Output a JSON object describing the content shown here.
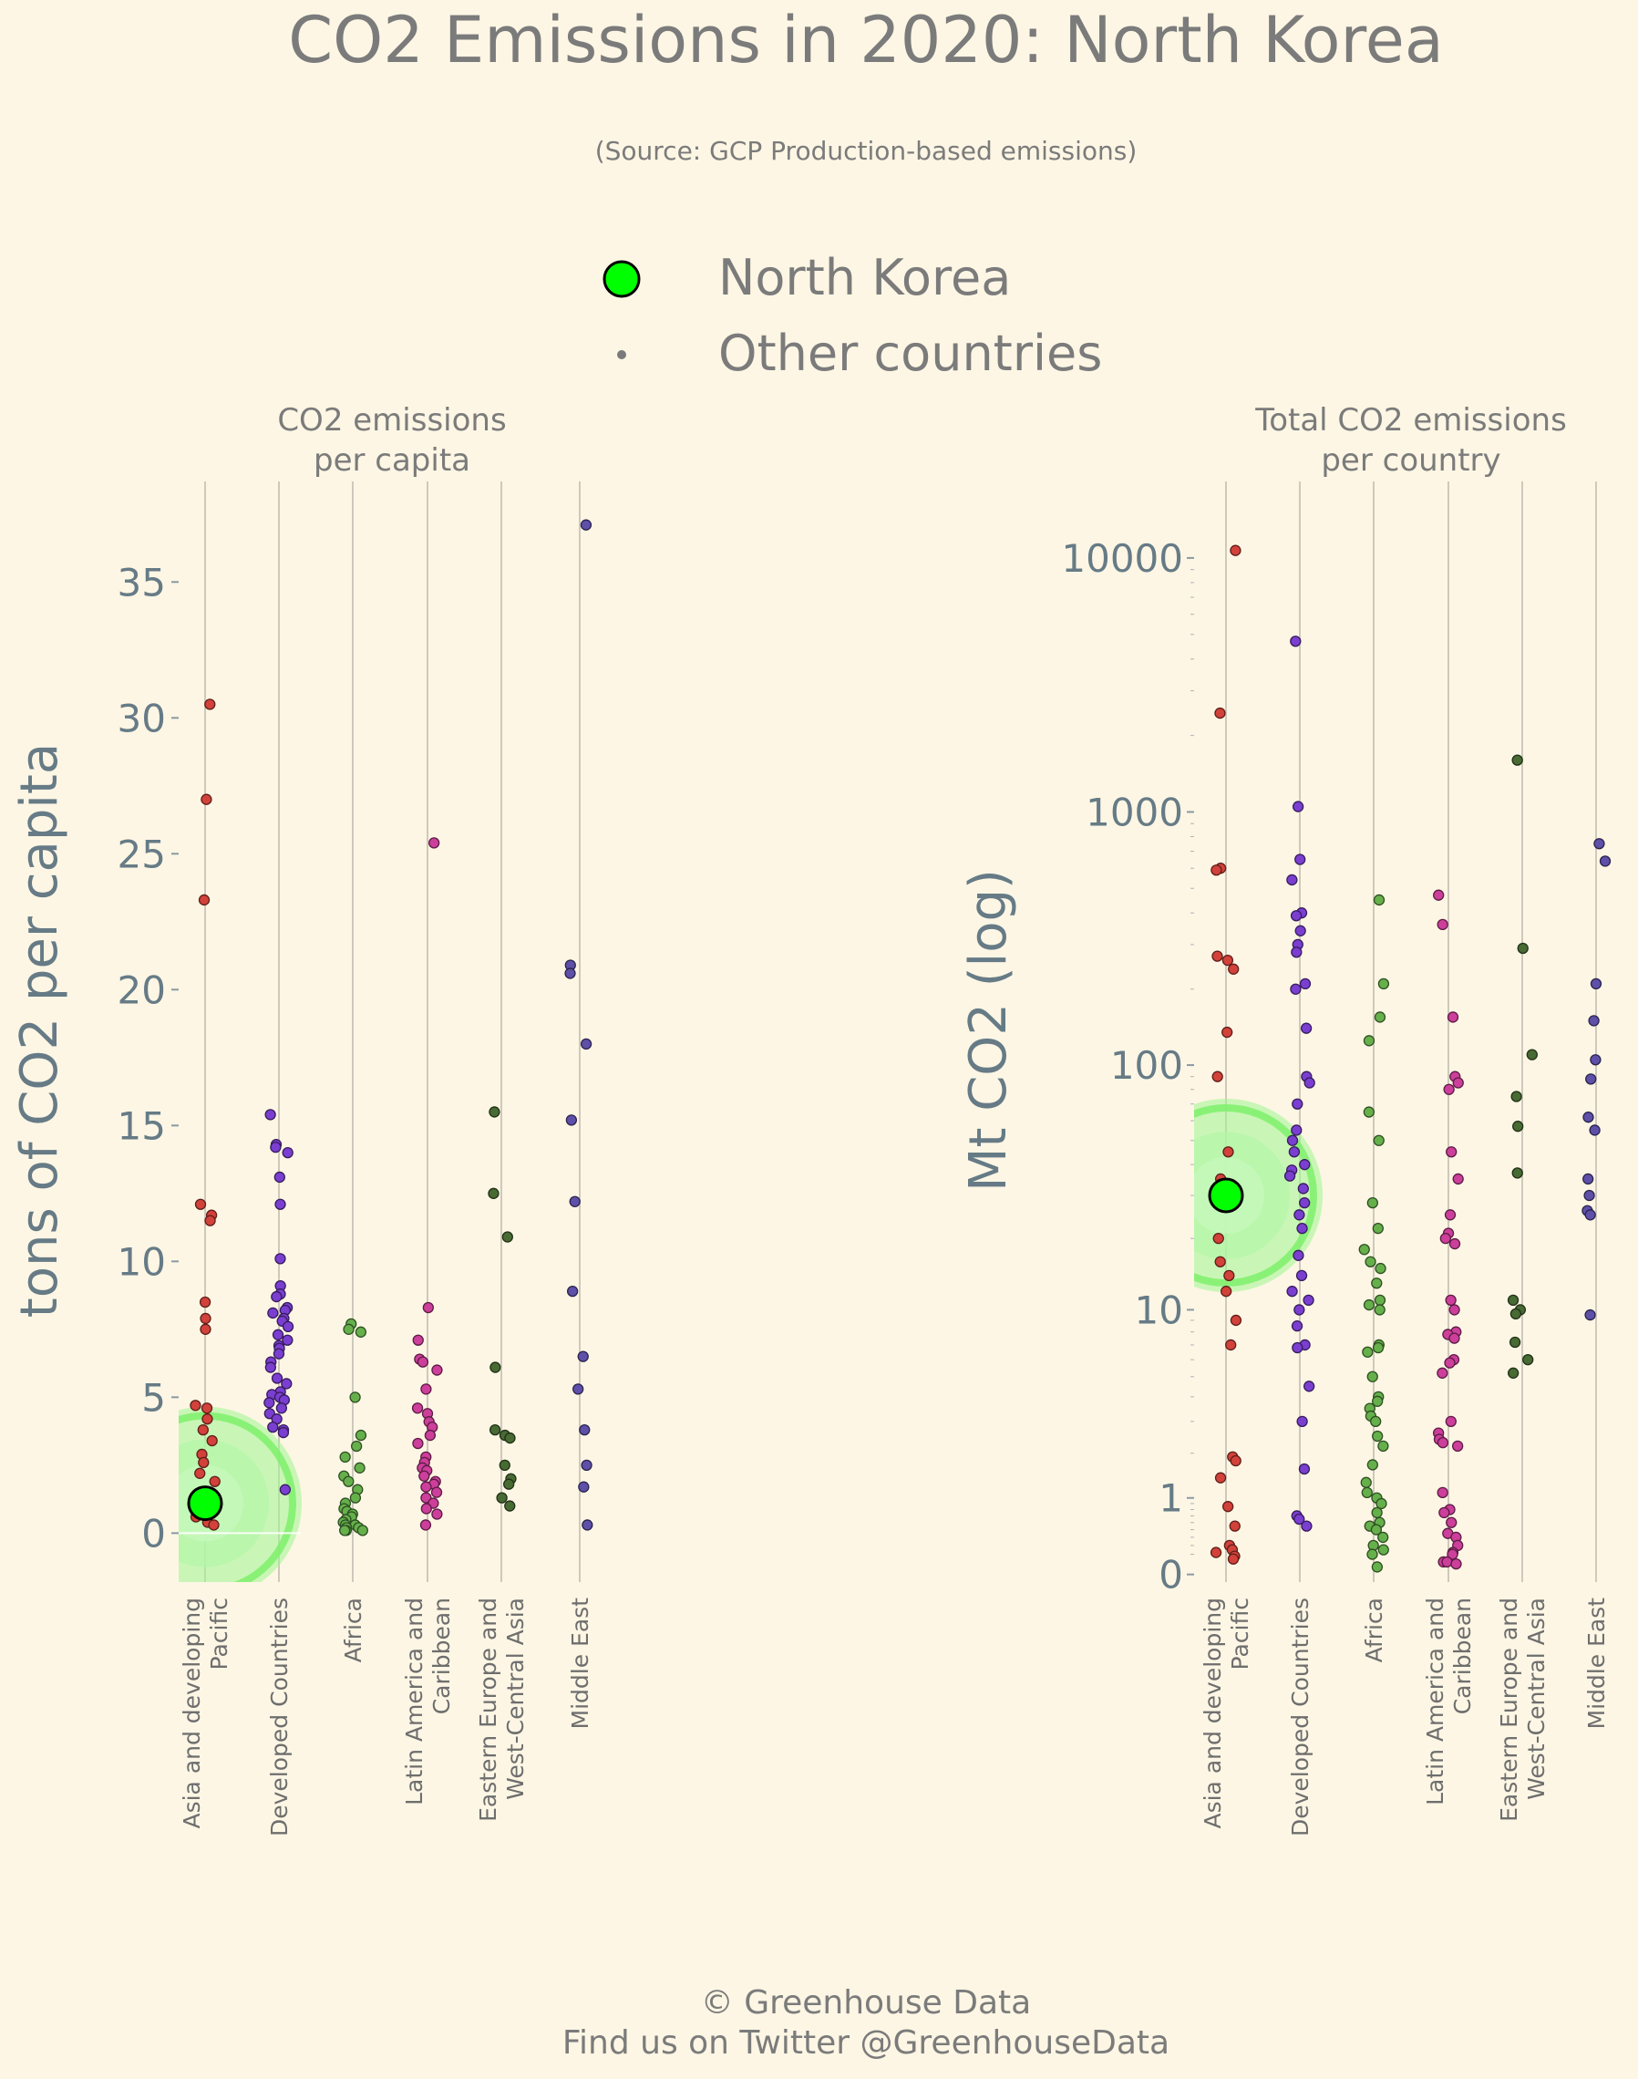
{
  "header": {
    "title": "CO2 Emissions in 2020: North Korea",
    "subtitle": "(Source: GCP Production-based emissions)"
  },
  "legend": {
    "highlight_label": "North Korea",
    "other_label": "Other countries",
    "highlight_color": "#00ff00"
  },
  "footer": {
    "line1": "© Greenhouse Data",
    "line2": "Find us on Twitter @GreenhouseData"
  },
  "region_colors": {
    "Asia and developing Pacific": "#d2423a",
    "Developed Countries": "#7a3fd0",
    "Africa": "#66b04c",
    "Latin America and Caribbean": "#cc3f9a",
    "Eastern Europe and West-Central Asia": "#486a33",
    "Middle East": "#5e4fa8"
  },
  "chart_data": [
    {
      "type": "scatter",
      "title_lines": [
        "CO2 emissions",
        "per capita"
      ],
      "ylabel": "tons of CO2 per capita",
      "scale": "linear",
      "ylim": [
        -1.8,
        38.7
      ],
      "yticks": [
        0,
        5,
        10,
        15,
        20,
        25,
        30,
        35
      ],
      "ytick_labels": [
        "0",
        "5",
        "10",
        "15",
        "20",
        "25",
        "30",
        "35"
      ],
      "categories": [
        [
          "Asia and developing",
          "Pacific"
        ],
        [
          "Developed Countries"
        ],
        [
          "Africa"
        ],
        [
          "Latin America and",
          "Caribbean"
        ],
        [
          "Eastern Europe and",
          "West-Central Asia"
        ],
        [
          "Middle East"
        ]
      ],
      "series": [
        {
          "region": "Asia and developing Pacific",
          "values": [
            30.5,
            27,
            23.3,
            12.1,
            11.7,
            11.5,
            8.5,
            7.9,
            7.5,
            4.7,
            4.6,
            4.2,
            3.8,
            3.4,
            2.9,
            2.6,
            2.2,
            1.9,
            1.5,
            1.2,
            0.9,
            0.6,
            0.4,
            0.3
          ]
        },
        {
          "region": "Developed Countries",
          "values": [
            15.4,
            14.3,
            14.2,
            14,
            13.1,
            12.1,
            10.1,
            9.1,
            8.8,
            8.7,
            8.3,
            8.2,
            8.1,
            7.9,
            7.8,
            7.6,
            7.3,
            7.1,
            6.9,
            6.8,
            6.6,
            6.3,
            6.1,
            5.7,
            5.5,
            5.2,
            5.1,
            5,
            4.9,
            4.8,
            4.6,
            4.4,
            4.2,
            3.9,
            3.8,
            3.7,
            1.6
          ]
        },
        {
          "region": "Africa",
          "values": [
            7.7,
            7.5,
            7.4,
            5,
            3.6,
            3.2,
            2.8,
            2.4,
            2.1,
            1.9,
            1.6,
            1.3,
            1.1,
            0.9,
            0.8,
            0.7,
            0.6,
            0.5,
            0.4,
            0.3,
            0.3,
            0.2,
            0.2,
            0.1,
            0.1,
            0.1
          ]
        },
        {
          "region": "Latin America and Caribbean",
          "values": [
            25.4,
            8.3,
            7.1,
            6.4,
            6.3,
            6,
            5.3,
            4.6,
            4.4,
            4.1,
            3.9,
            3.6,
            3.3,
            2.8,
            2.6,
            2.4,
            2.3,
            2.1,
            1.9,
            1.8,
            1.7,
            1.5,
            1.3,
            1.1,
            0.9,
            0.7,
            0.3
          ]
        },
        {
          "region": "Eastern Europe and West-Central Asia",
          "values": [
            15.5,
            12.5,
            10.9,
            6.1,
            3.8,
            3.6,
            3.5,
            2.5,
            2,
            1.8,
            1.3,
            1
          ]
        },
        {
          "region": "Middle East",
          "values": [
            37.1,
            20.9,
            20.6,
            18,
            15.2,
            12.2,
            8.9,
            6.5,
            5.3,
            3.8,
            2.5,
            1.7,
            0.3
          ]
        }
      ],
      "highlight": {
        "name": "North Korea",
        "category_index": 0,
        "value": 1.1
      }
    },
    {
      "type": "scatter",
      "title_lines": [
        "Total CO2 emissions",
        "per country"
      ],
      "ylabel": "Mt CO2 (log)",
      "scale": "log1p",
      "ylim": [
        -0.2,
        20000
      ],
      "yticks": [
        0,
        1,
        10,
        100,
        1000,
        10000
      ],
      "ytick_labels": [
        "0",
        "1",
        "10",
        "100",
        "1000",
        "10000"
      ],
      "categories": [
        [
          "Asia and developing",
          "Pacific"
        ],
        [
          "Developed Countries"
        ],
        [
          "Africa"
        ],
        [
          "Latin America and",
          "Caribbean"
        ],
        [
          "Eastern Europe and",
          "West-Central Asia"
        ],
        [
          "Middle East"
        ]
      ],
      "series": [
        {
          "region": "Asia and developing Pacific",
          "values": [
            10700,
            2450,
            600,
            590,
            270,
            260,
            240,
            135,
            90,
            45,
            35,
            28,
            20,
            16,
            14,
            12,
            9,
            7,
            1.9,
            1.8,
            1.4,
            0.85,
            0.55,
            0.3,
            0.25,
            0.22,
            0.18,
            0.15
          ]
        },
        {
          "region": "Developed Countries",
          "values": [
            4700,
            1050,
            650,
            540,
            400,
            390,
            340,
            300,
            280,
            210,
            200,
            140,
            90,
            85,
            70,
            55,
            50,
            45,
            40,
            38,
            36,
            32,
            28,
            25,
            22,
            17,
            14,
            12,
            11,
            10,
            8.5,
            7,
            6.8,
            4.5,
            3,
            1.6,
            0.7,
            0.65,
            0.55
          ]
        },
        {
          "region": "Africa",
          "values": [
            450,
            210,
            155,
            125,
            65,
            50,
            28,
            22,
            18,
            16,
            15,
            13,
            11,
            10.5,
            10,
            7,
            6.8,
            6.5,
            5,
            4,
            3.8,
            3.5,
            3.2,
            3,
            2.5,
            2.2,
            1.7,
            1.3,
            1.1,
            1,
            0.9,
            0.75,
            0.6,
            0.55,
            0.5,
            0.4,
            0.3,
            0.25,
            0.2,
            0.07
          ]
        },
        {
          "region": "Latin America and Caribbean",
          "values": [
            470,
            360,
            155,
            90,
            85,
            80,
            45,
            35,
            25,
            21,
            20,
            19,
            11,
            10,
            8,
            7.8,
            7.5,
            6,
            5.8,
            5.2,
            3,
            2.6,
            2.4,
            2.3,
            2.2,
            1.1,
            0.8,
            0.75,
            0.6,
            0.45,
            0.4,
            0.3,
            0.22,
            0.2,
            0.12,
            0.12,
            0.1
          ]
        },
        {
          "region": "Eastern Europe and West-Central Asia",
          "values": [
            1600,
            290,
            110,
            75,
            57,
            37,
            11,
            10,
            9.6,
            7.2,
            6,
            5.2
          ]
        },
        {
          "region": "Middle East",
          "values": [
            750,
            640,
            210,
            150,
            105,
            88,
            62,
            55,
            35,
            30,
            26,
            25,
            9.5
          ]
        }
      ],
      "highlight": {
        "name": "North Korea",
        "category_index": 0,
        "value": 30
      }
    }
  ]
}
